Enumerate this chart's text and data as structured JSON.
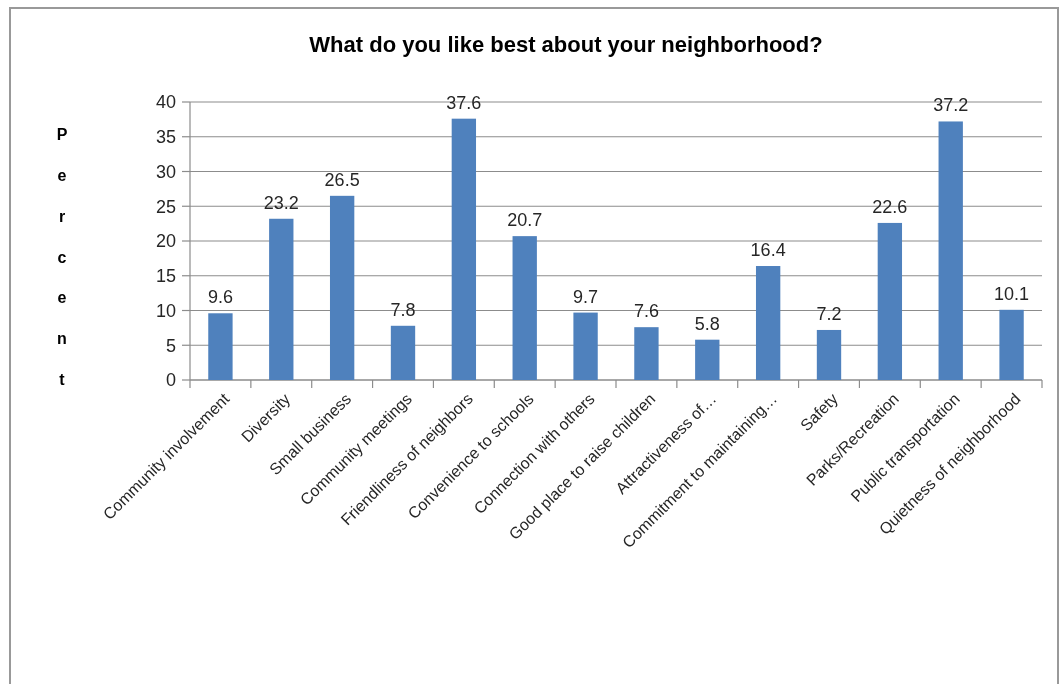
{
  "chart_data": {
    "type": "bar",
    "title": "What do you like best about your neighborhood?",
    "ylabel": "Percent",
    "categories": [
      "Community involvement",
      "Diversity",
      "Small business",
      "Community meetings",
      "Friendliness of neighbors",
      "Convenience to schools",
      "Connection with others",
      "Good place to raise children",
      "Attractiveness of…",
      "Commitment to maintaining…",
      "Safety",
      "Parks/Recreation",
      "Public transportation",
      "Quietness of neighborhood"
    ],
    "values": [
      9.6,
      23.2,
      26.5,
      7.8,
      37.6,
      20.7,
      9.7,
      7.6,
      5.8,
      16.4,
      7.2,
      22.6,
      37.2,
      10.1
    ],
    "color": "#4f81bd",
    "ylim": [
      0,
      40
    ],
    "yticks": [
      0,
      5,
      10,
      15,
      20,
      25,
      30,
      35,
      40
    ],
    "grid": "y",
    "data_labels": true
  }
}
